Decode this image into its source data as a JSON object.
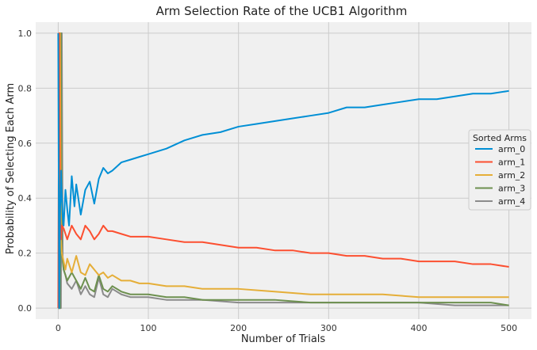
{
  "chart_data": {
    "type": "line",
    "title": "Arm Selection Rate of the UCB1 Algorithm",
    "xlabel": "Number of Trials",
    "ylabel": "Probability of Selecting Each Arm",
    "xlim": [
      -25,
      525
    ],
    "ylim": [
      -0.04,
      1.04
    ],
    "xticks": [
      0,
      100,
      200,
      300,
      400,
      500
    ],
    "yticks": [
      0.0,
      0.2,
      0.4,
      0.6,
      0.8,
      1.0
    ],
    "ytick_labels": [
      "0.0",
      "0.2",
      "0.4",
      "0.6",
      "0.8",
      "1.0"
    ],
    "grid": true,
    "legend": {
      "title": "Sorted Arms",
      "position": "center-right"
    },
    "series": [
      {
        "name": "arm_0",
        "color": "#008fd5",
        "x": [
          0,
          1,
          2,
          3,
          4,
          5,
          6,
          8,
          10,
          12,
          15,
          18,
          20,
          25,
          30,
          35,
          40,
          45,
          50,
          55,
          60,
          70,
          80,
          90,
          100,
          120,
          140,
          160,
          180,
          200,
          220,
          240,
          260,
          280,
          300,
          320,
          340,
          360,
          380,
          400,
          420,
          440,
          460,
          480,
          500
        ],
        "y": [
          1.0,
          0.0,
          0.33,
          0.5,
          0.4,
          0.33,
          0.3,
          0.43,
          0.36,
          0.3,
          0.48,
          0.37,
          0.45,
          0.34,
          0.43,
          0.46,
          0.38,
          0.47,
          0.51,
          0.49,
          0.5,
          0.53,
          0.54,
          0.55,
          0.56,
          0.58,
          0.61,
          0.63,
          0.64,
          0.66,
          0.67,
          0.68,
          0.69,
          0.7,
          0.71,
          0.73,
          0.73,
          0.74,
          0.75,
          0.76,
          0.76,
          0.77,
          0.78,
          0.78,
          0.79
        ]
      },
      {
        "name": "arm_1",
        "color": "#fc4f30",
        "x": [
          0,
          1,
          2,
          3,
          4,
          6,
          8,
          10,
          15,
          20,
          25,
          30,
          35,
          40,
          45,
          50,
          55,
          60,
          70,
          80,
          90,
          100,
          120,
          140,
          160,
          180,
          200,
          220,
          240,
          260,
          280,
          300,
          320,
          340,
          360,
          380,
          400,
          420,
          440,
          460,
          480,
          500
        ],
        "y": [
          0.0,
          1.0,
          0.33,
          0.25,
          0.3,
          0.29,
          0.27,
          0.25,
          0.3,
          0.27,
          0.25,
          0.3,
          0.28,
          0.25,
          0.27,
          0.3,
          0.28,
          0.28,
          0.27,
          0.26,
          0.26,
          0.26,
          0.25,
          0.24,
          0.24,
          0.23,
          0.22,
          0.22,
          0.21,
          0.21,
          0.2,
          0.2,
          0.19,
          0.19,
          0.18,
          0.18,
          0.17,
          0.17,
          0.17,
          0.16,
          0.16,
          0.15
        ]
      },
      {
        "name": "arm_2",
        "color": "#e5ae38",
        "x": [
          0,
          1,
          2,
          3,
          4,
          6,
          8,
          10,
          15,
          20,
          25,
          30,
          35,
          40,
          45,
          50,
          55,
          60,
          70,
          80,
          90,
          100,
          120,
          140,
          160,
          180,
          200,
          240,
          280,
          320,
          360,
          400,
          440,
          480,
          500
        ],
        "y": [
          0.0,
          0.0,
          1.0,
          0.25,
          0.2,
          0.17,
          0.14,
          0.18,
          0.13,
          0.19,
          0.13,
          0.12,
          0.16,
          0.14,
          0.12,
          0.13,
          0.11,
          0.12,
          0.1,
          0.1,
          0.09,
          0.09,
          0.08,
          0.08,
          0.07,
          0.07,
          0.07,
          0.06,
          0.05,
          0.05,
          0.05,
          0.04,
          0.04,
          0.04,
          0.04
        ]
      },
      {
        "name": "arm_3",
        "color": "#6d904f",
        "x": [
          0,
          1,
          2,
          3,
          4,
          5,
          6,
          8,
          10,
          15,
          20,
          25,
          30,
          35,
          40,
          45,
          50,
          55,
          60,
          70,
          80,
          90,
          100,
          120,
          140,
          160,
          200,
          240,
          280,
          320,
          360,
          400,
          440,
          480,
          500
        ],
        "y": [
          0.0,
          0.0,
          0.0,
          1.0,
          0.2,
          0.17,
          0.14,
          0.12,
          0.1,
          0.13,
          0.1,
          0.07,
          0.11,
          0.07,
          0.06,
          0.12,
          0.07,
          0.06,
          0.08,
          0.06,
          0.05,
          0.05,
          0.05,
          0.04,
          0.04,
          0.03,
          0.03,
          0.03,
          0.02,
          0.02,
          0.02,
          0.02,
          0.02,
          0.02,
          0.01
        ]
      },
      {
        "name": "arm_4",
        "color": "#8b8b8b",
        "x": [
          0,
          1,
          2,
          3,
          4,
          5,
          6,
          8,
          10,
          15,
          20,
          25,
          30,
          35,
          40,
          45,
          50,
          55,
          60,
          70,
          80,
          90,
          100,
          120,
          140,
          160,
          200,
          240,
          280,
          320,
          360,
          400,
          440,
          480,
          500
        ],
        "y": [
          0.0,
          0.0,
          0.0,
          0.0,
          1.0,
          0.17,
          0.14,
          0.12,
          0.09,
          0.07,
          0.1,
          0.05,
          0.08,
          0.05,
          0.04,
          0.11,
          0.05,
          0.04,
          0.07,
          0.05,
          0.04,
          0.04,
          0.04,
          0.03,
          0.03,
          0.03,
          0.02,
          0.02,
          0.02,
          0.02,
          0.02,
          0.02,
          0.01,
          0.01,
          0.01
        ]
      }
    ]
  }
}
